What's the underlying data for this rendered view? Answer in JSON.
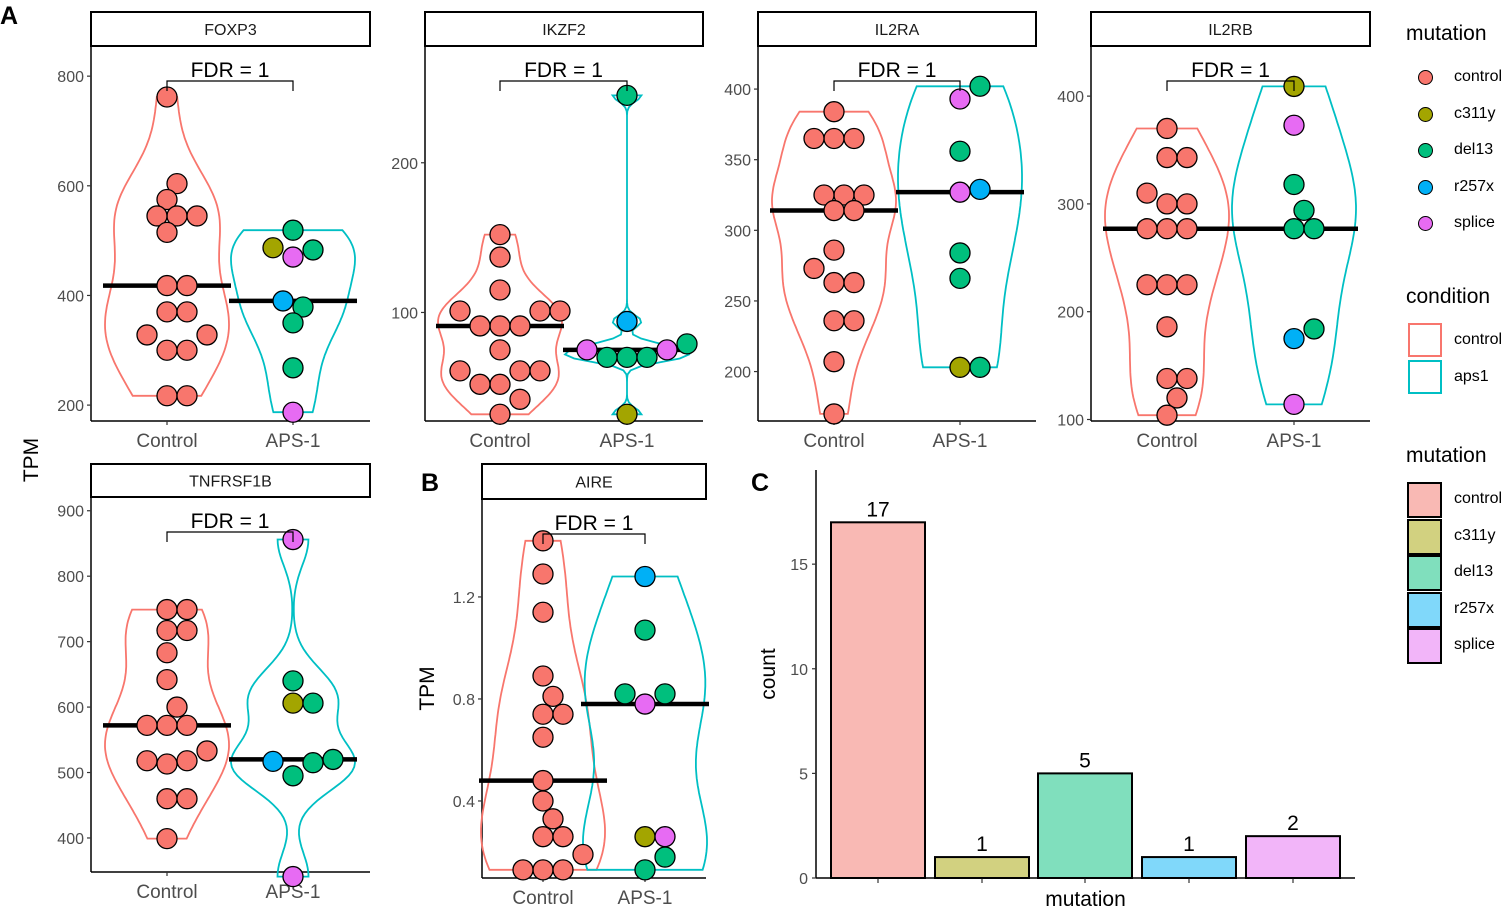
{
  "panel_labels": {
    "a": "A",
    "b": "B",
    "c": "C"
  },
  "shared_ylabel": "TPM",
  "mutation_colors": {
    "control": "#F8766D",
    "c311y": "#A3A500",
    "del13": "#00BF7D",
    "r257x": "#00B0F6",
    "splice": "#E76BF3"
  },
  "condition_colors": {
    "control": "#F8766D",
    "aps1": "#00BFC4"
  },
  "legends": {
    "points": {
      "title": "mutation",
      "items": [
        "control",
        "c311y",
        "del13",
        "r257x",
        "splice"
      ]
    },
    "condition": {
      "title": "condition",
      "items": [
        "control",
        "aps1"
      ]
    },
    "fill": {
      "title": "mutation",
      "items": [
        "control",
        "c311y",
        "del13",
        "r257x",
        "splice"
      ]
    }
  },
  "chart_data": [
    {
      "type": "violin",
      "title": "FOXP3",
      "annotation": "FDR = 1",
      "ylabel": "",
      "categories": [
        "Control",
        "APS-1"
      ],
      "ylim": [
        171,
        855
      ],
      "yticks": [
        200,
        400,
        600,
        800
      ],
      "series": [
        {
          "name": "Control",
          "condition": "control",
          "values": [
            762,
            604,
            575,
            545,
            545,
            545,
            515,
            418,
            418,
            370,
            370,
            328,
            328,
            300,
            300,
            217,
            217
          ],
          "mutations": [
            "control",
            "control",
            "control",
            "control",
            "control",
            "control",
            "control",
            "control",
            "control",
            "control",
            "control",
            "control",
            "control",
            "control",
            "control",
            "control",
            "control"
          ]
        },
        {
          "name": "APS-1",
          "condition": "aps1",
          "values": [
            519,
            487,
            483,
            470,
            390,
            379,
            350,
            268,
            187
          ],
          "mutations": [
            "del13",
            "c311y",
            "del13",
            "splice",
            "r257x",
            "del13",
            "del13",
            "del13",
            "splice"
          ]
        }
      ]
    },
    {
      "type": "violin",
      "title": "IKZF2",
      "annotation": "FDR = 1",
      "ylabel": "",
      "categories": [
        "Control",
        "APS-1"
      ],
      "ylim": [
        27.5,
        278
      ],
      "yticks": [
        100,
        200
      ],
      "series": [
        {
          "name": "Control",
          "condition": "control",
          "values": [
            152,
            137,
            115,
            101,
            101,
            101,
            91,
            91,
            91,
            75,
            61,
            61,
            61,
            52,
            52,
            42,
            32
          ],
          "mutations": [
            "control",
            "control",
            "control",
            "control",
            "control",
            "control",
            "control",
            "control",
            "control",
            "control",
            "control",
            "control",
            "control",
            "control",
            "control",
            "control",
            "control"
          ]
        },
        {
          "name": "APS-1",
          "condition": "aps1",
          "values": [
            245,
            94,
            79,
            75,
            75,
            70,
            70,
            70,
            32
          ],
          "mutations": [
            "del13",
            "r257x",
            "del13",
            "splice",
            "splice",
            "del13",
            "del13",
            "del13",
            "c311y"
          ]
        }
      ]
    },
    {
      "type": "violin",
      "title": "IL2RA",
      "annotation": "FDR = 1",
      "ylabel": "",
      "categories": [
        "Control",
        "APS-1"
      ],
      "ylim": [
        165,
        430.5
      ],
      "yticks": [
        200,
        250,
        300,
        350,
        400
      ],
      "series": [
        {
          "name": "Control",
          "condition": "control",
          "values": [
            384,
            365,
            365,
            365,
            325,
            325,
            325,
            314,
            314,
            286,
            273,
            263,
            263,
            236,
            236,
            207,
            170
          ],
          "mutations": [
            "control",
            "control",
            "control",
            "control",
            "control",
            "control",
            "control",
            "control",
            "control",
            "control",
            "control",
            "control",
            "control",
            "control",
            "control",
            "control",
            "control"
          ]
        },
        {
          "name": "APS-1",
          "condition": "aps1",
          "values": [
            402,
            393,
            356,
            329,
            327,
            284,
            266,
            203,
            203
          ],
          "mutations": [
            "del13",
            "splice",
            "del13",
            "r257x",
            "splice",
            "del13",
            "del13",
            "c311y",
            "del13"
          ]
        }
      ]
    },
    {
      "type": "violin",
      "title": "IL2RB",
      "annotation": "FDR = 1",
      "ylabel": "",
      "categories": [
        "Control",
        "APS-1"
      ],
      "ylim": [
        98.6,
        446.5
      ],
      "yticks": [
        100,
        200,
        300,
        400
      ],
      "series": [
        {
          "name": "Control",
          "condition": "control",
          "values": [
            370,
            343,
            343,
            310,
            300,
            300,
            277,
            277,
            277,
            225,
            225,
            225,
            186,
            138,
            138,
            120,
            104
          ],
          "mutations": [
            "control",
            "control",
            "control",
            "control",
            "control",
            "control",
            "control",
            "control",
            "control",
            "control",
            "control",
            "control",
            "control",
            "control",
            "control",
            "control",
            "control"
          ]
        },
        {
          "name": "APS-1",
          "condition": "aps1",
          "values": [
            409,
            373,
            318,
            294,
            277,
            277,
            184,
            175,
            114
          ],
          "mutations": [
            "c311y",
            "splice",
            "del13",
            "del13",
            "del13",
            "del13",
            "del13",
            "r257x",
            "splice"
          ]
        }
      ]
    },
    {
      "type": "violin",
      "title": "TNFRSF1B",
      "annotation": "FDR = 1",
      "ylabel": "",
      "categories": [
        "Control",
        "APS-1"
      ],
      "ylim": [
        348,
        921
      ],
      "yticks": [
        400,
        500,
        600,
        700,
        800,
        900
      ],
      "series": [
        {
          "name": "Control",
          "condition": "control",
          "values": [
            749,
            749,
            717,
            717,
            683,
            642,
            600,
            572,
            572,
            572,
            533,
            518,
            518,
            513,
            460,
            460,
            399
          ],
          "mutations": [
            "control",
            "control",
            "control",
            "control",
            "control",
            "control",
            "control",
            "control",
            "control",
            "control",
            "control",
            "control",
            "control",
            "control",
            "control",
            "control",
            "control"
          ]
        },
        {
          "name": "APS-1",
          "condition": "aps1",
          "values": [
            856,
            640,
            606,
            606,
            520,
            517,
            515,
            495,
            341
          ],
          "mutations": [
            "splice",
            "del13",
            "c311y",
            "del13",
            "del13",
            "r257x",
            "del13",
            "del13",
            "splice"
          ]
        }
      ]
    },
    {
      "type": "violin",
      "title": "AIRE",
      "annotation": "FDR = 1",
      "ylabel": "TPM",
      "categories": [
        "Control",
        "APS-1"
      ],
      "ylim": [
        0.098,
        1.584
      ],
      "yticks": [
        0.4,
        0.8,
        1.2
      ],
      "series": [
        {
          "name": "Control",
          "condition": "control",
          "values": [
            1.42,
            1.29,
            1.14,
            0.89,
            0.81,
            0.74,
            0.74,
            0.65,
            0.48,
            0.4,
            0.33,
            0.26,
            0.26,
            0.19,
            0.13,
            0.13,
            0.13
          ],
          "mutations": [
            "control",
            "control",
            "control",
            "control",
            "control",
            "control",
            "control",
            "control",
            "control",
            "control",
            "control",
            "control",
            "control",
            "control",
            "control",
            "control",
            "control"
          ]
        },
        {
          "name": "APS-1",
          "condition": "aps1",
          "values": [
            1.28,
            1.07,
            0.82,
            0.82,
            0.78,
            0.26,
            0.26,
            0.18,
            0.13
          ],
          "mutations": [
            "r257x",
            "del13",
            "del13",
            "del13",
            "splice",
            "c311y",
            "splice",
            "del13",
            "del13"
          ]
        }
      ]
    },
    {
      "type": "bar",
      "title": "",
      "xlabel": "mutation",
      "ylabel": "count",
      "categories": [
        "control",
        "c311y",
        "del13",
        "r257x",
        "splice"
      ],
      "values": [
        17,
        1,
        5,
        1,
        2
      ],
      "fill_colors": [
        "#F9B9B4",
        "#D2D180",
        "#80DFBD",
        "#80D8FA",
        "#F2B5F9"
      ],
      "ylim": [
        0,
        19.5
      ],
      "yticks": [
        0,
        5,
        10,
        15
      ],
      "legend": "right"
    }
  ]
}
